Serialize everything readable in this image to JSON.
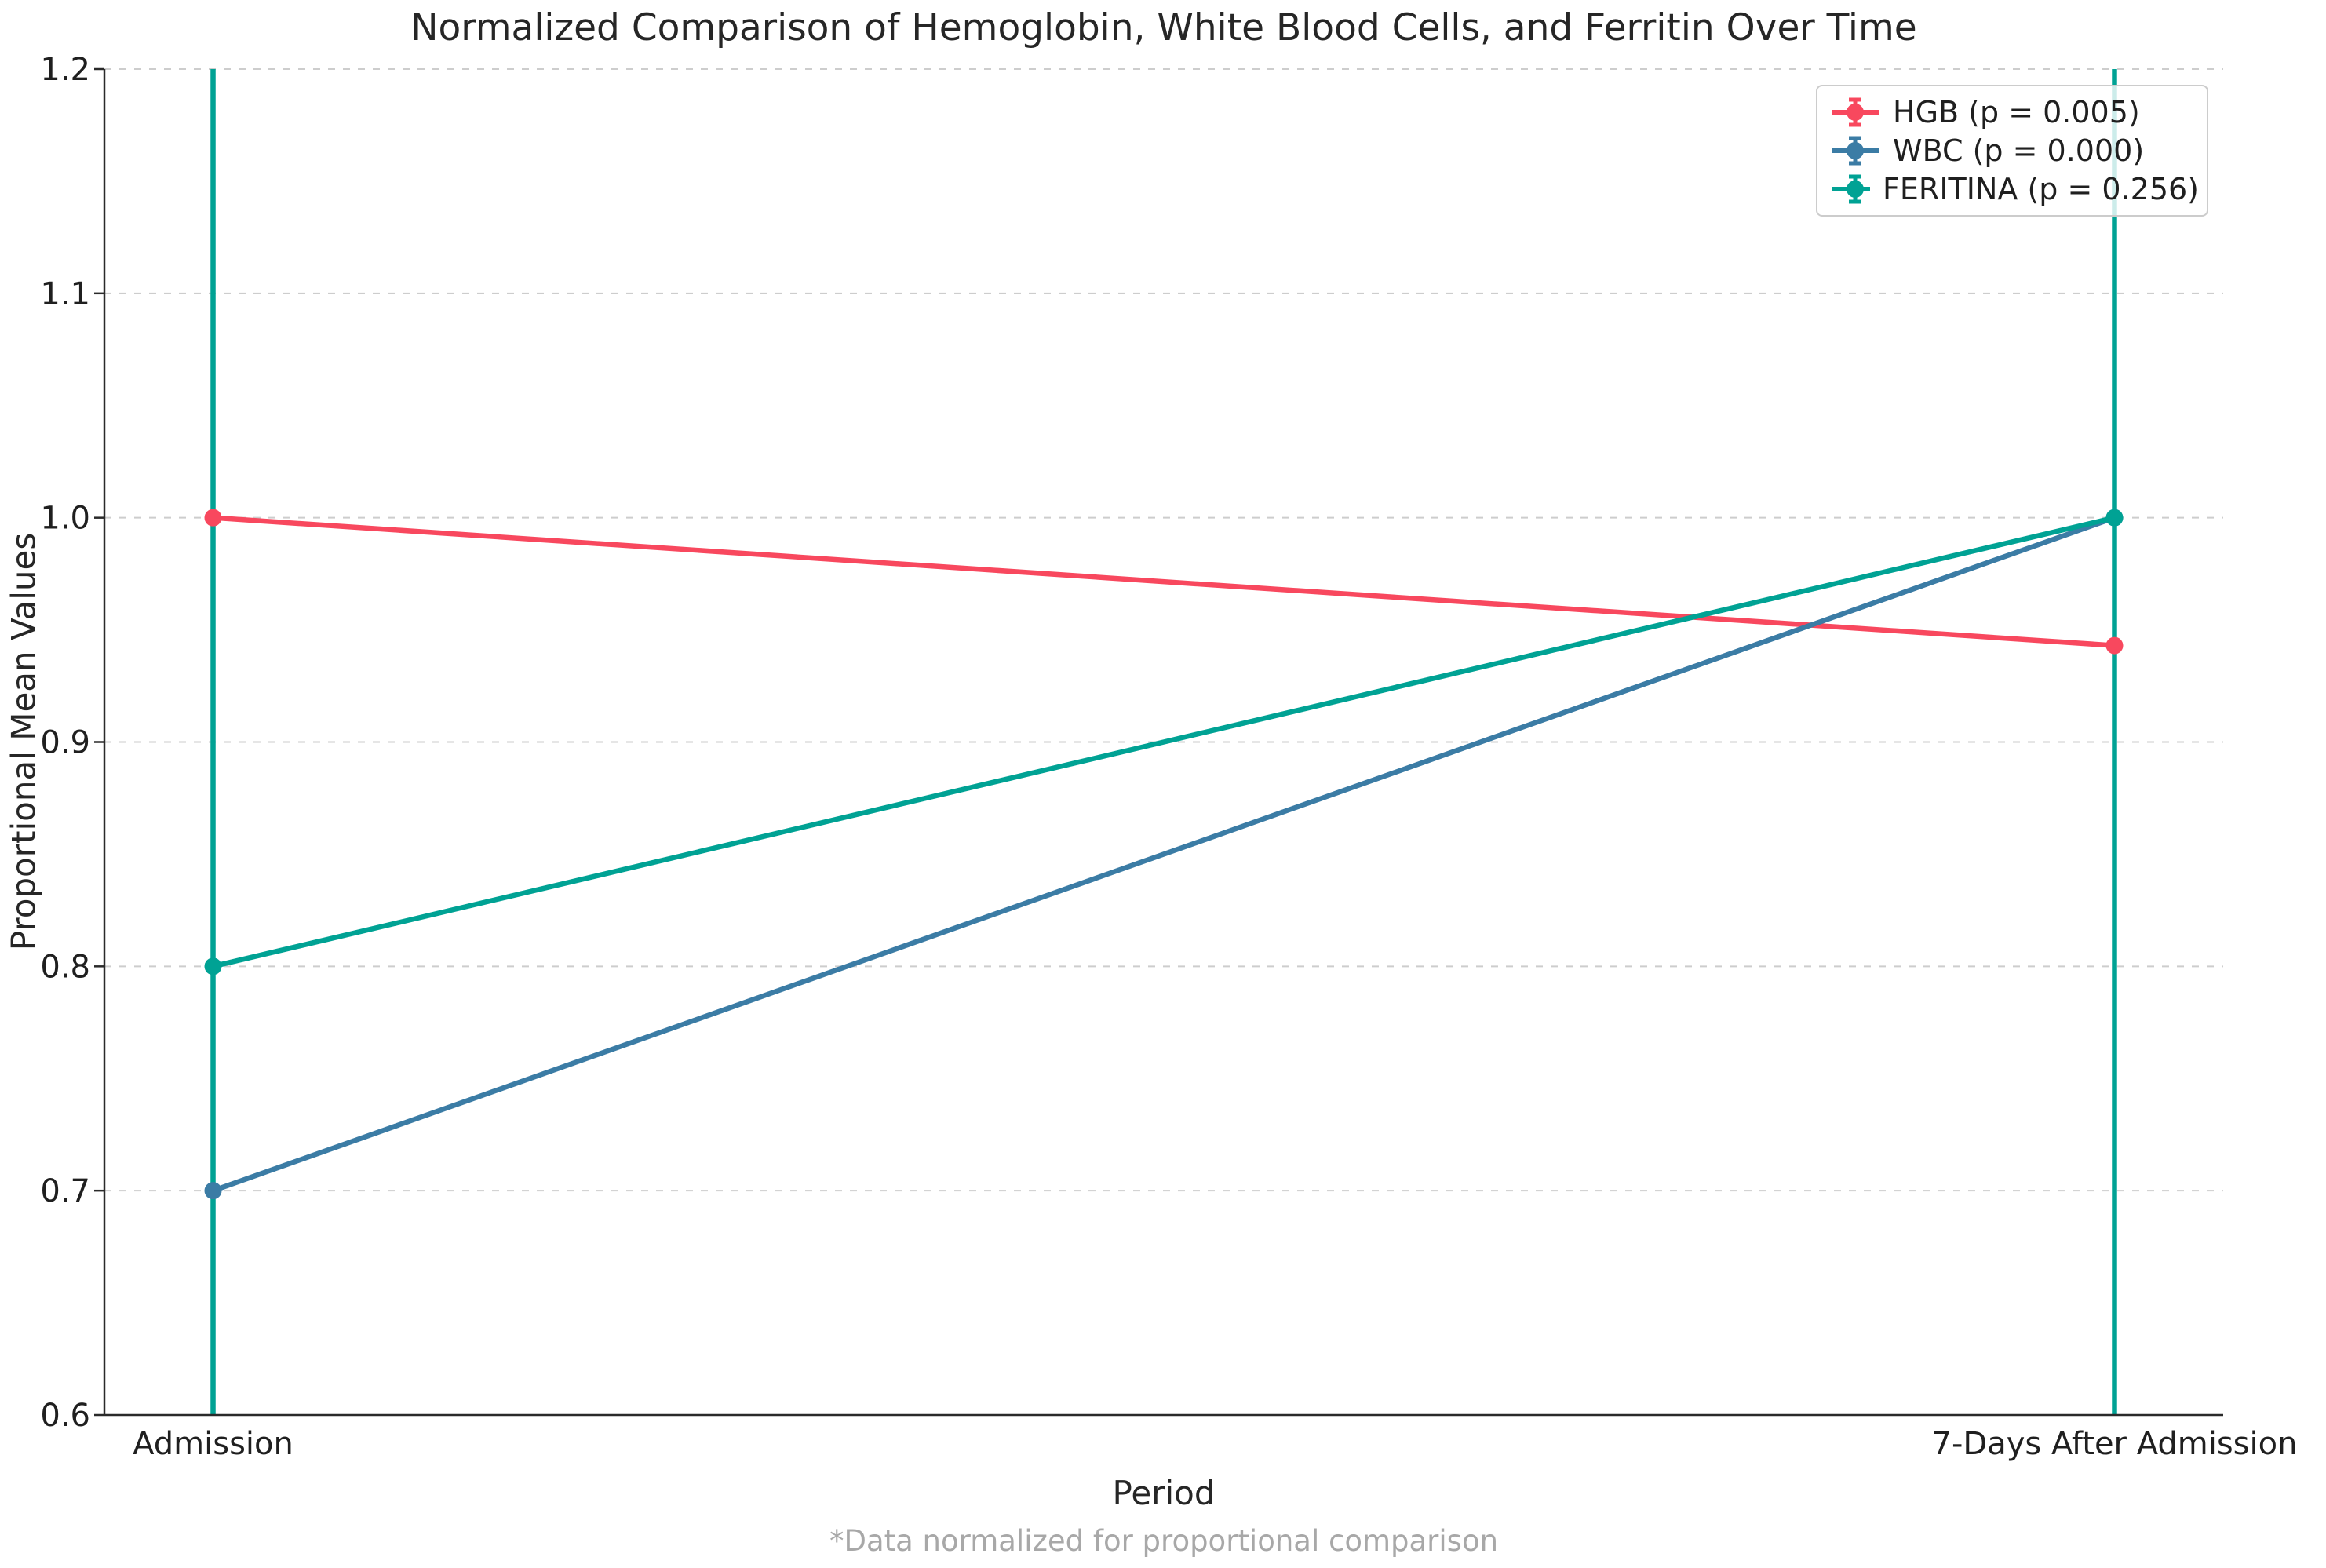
{
  "chart_data": {
    "type": "line",
    "title": "Normalized Comparison of Hemoglobin, White Blood Cells, and Ferritin Over Time",
    "xlabel": "Period",
    "ylabel": "Proportional Mean Values",
    "footnote": "*Data normalized for proportional comparison",
    "categories": [
      "Admission",
      "7-Days After Admission"
    ],
    "series": [
      {
        "name": "HGB",
        "legend_label": "HGB (p = 0.005)",
        "p_value": "0.005",
        "color": "#F8485E",
        "values": [
          1.0,
          0.943
        ],
        "error_bar_full_height": false
      },
      {
        "name": "WBC",
        "legend_label": "WBC (p = 0.000)",
        "p_value": "0.000",
        "color": "#3B7CA5",
        "values": [
          0.7,
          1.0
        ],
        "error_bar_full_height": false
      },
      {
        "name": "FERITINA",
        "legend_label": "FERITINA (p = 0.256)",
        "p_value": "0.256",
        "color": "#00A294",
        "values": [
          0.8,
          1.0
        ],
        "error_bar_full_height": true
      }
    ],
    "ylim": [
      0.6,
      1.2
    ],
    "yticks": [
      0.6,
      0.7,
      0.8,
      0.9,
      1.0,
      1.1,
      1.2
    ],
    "grid": "horizontal-dashed",
    "legend_position": "upper-right",
    "marker": "circle",
    "colors": {
      "grid": "#cdcdcd",
      "axis": "#2a2a2a",
      "tick_label": "#1f1f1f",
      "footnote": "#a8a8a8",
      "legend_border": "#cccccc"
    }
  }
}
